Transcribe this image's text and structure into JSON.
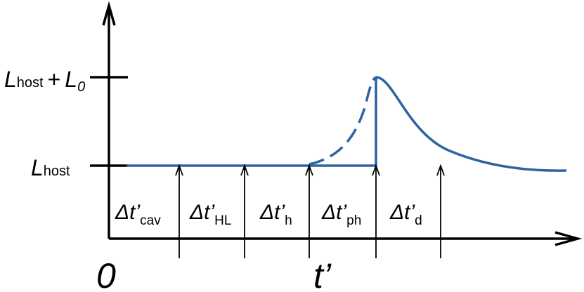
{
  "levels": [
    {
      "main": "L",
      "sub": "host",
      "plus": "+",
      "main2": "L",
      "sub2": "0"
    },
    {
      "main": "L",
      "sub": "host"
    }
  ],
  "intervals": [
    {
      "symbol": "Δt’",
      "sub": "cav"
    },
    {
      "symbol": "Δt’",
      "sub": "HL"
    },
    {
      "symbol": "Δt’",
      "sub": "h"
    },
    {
      "symbol": "Δt’",
      "sub": "ph"
    },
    {
      "symbol": "Δt’",
      "sub": "d"
    }
  ],
  "axes": {
    "origin": "0",
    "x_label": "t’"
  }
}
